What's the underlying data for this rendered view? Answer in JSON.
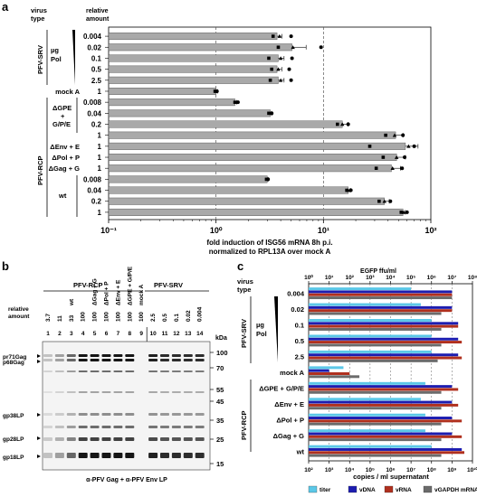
{
  "panel_a": {
    "label": "a",
    "header_virus": [
      "virus",
      "type"
    ],
    "header_amount": [
      "relative",
      "amount"
    ],
    "group_srv": "PFV-SRV",
    "group_rcp": "PFV-RCP",
    "ug_pol": [
      "µg",
      "Pol"
    ],
    "dgpe": [
      "ΔGPE",
      "+",
      "G/P/E"
    ],
    "wt": "wt",
    "rows": [
      {
        "amount": "0.004",
        "row_label": "",
        "value": 3.7,
        "err": 0.4,
        "pts": [
          3.4,
          3.9,
          5.0
        ]
      },
      {
        "amount": "0.02",
        "row_label": "",
        "value": 5.1,
        "err": 1.8,
        "pts": [
          3.8,
          5.2,
          9.5
        ]
      },
      {
        "amount": "0.1",
        "row_label": "",
        "value": 3.8,
        "err": 0.5,
        "pts": [
          3.1,
          4.0,
          5.1
        ]
      },
      {
        "amount": "0.5",
        "row_label": "",
        "value": 3.7,
        "err": 0.4,
        "pts": [
          3.3,
          3.8,
          4.8
        ]
      },
      {
        "amount": "2.5",
        "row_label": "",
        "value": 3.8,
        "err": 0.5,
        "pts": [
          3.2,
          4.0,
          5.0
        ]
      },
      {
        "amount": "1",
        "row_label": "mock A",
        "value": 1.0,
        "err": 0.03,
        "pts": [
          0.98,
          1.0,
          1.02
        ]
      },
      {
        "amount": "0.008",
        "row_label": "",
        "value": 1.5,
        "err": 0.05,
        "pts": [
          1.5,
          1.55,
          1.6
        ]
      },
      {
        "amount": "0.04",
        "row_label": "",
        "value": 3.2,
        "err": 0.1,
        "pts": [
          3.1,
          3.25,
          3.3
        ]
      },
      {
        "amount": "0.2",
        "row_label": "",
        "value": 15,
        "err": 2,
        "pts": [
          13.5,
          15,
          17
        ]
      },
      {
        "amount": "1",
        "row_label": "",
        "value": 47,
        "err": 8,
        "pts": [
          38,
          46,
          55
        ]
      },
      {
        "amount": "1",
        "row_label": "ΔEnv + E",
        "value": 58,
        "err": 18,
        "pts": [
          27,
          62,
          70
        ]
      },
      {
        "amount": "1",
        "row_label": "ΔPol + P",
        "value": 48,
        "err": 10,
        "pts": [
          36,
          48,
          57
        ]
      },
      {
        "amount": "1",
        "row_label": "ΔGag + G",
        "value": 43,
        "err": 9,
        "pts": [
          31,
          44,
          54
        ]
      },
      {
        "amount": "0.008",
        "row_label": "",
        "value": 3.0,
        "err": 0.05,
        "pts": [
          2.95,
          3.0,
          3.05
        ]
      },
      {
        "amount": "0.04",
        "row_label": "",
        "value": 17,
        "err": 0.8,
        "pts": [
          16.5,
          17,
          18
        ]
      },
      {
        "amount": "0.2",
        "row_label": "",
        "value": 37,
        "err": 4,
        "pts": [
          33,
          37,
          42
        ]
      },
      {
        "amount": "1",
        "row_label": "",
        "value": 55,
        "err": 3,
        "pts": [
          53,
          56,
          60
        ]
      }
    ],
    "x_ticks": [
      "10⁻¹",
      "10⁰",
      "10¹",
      "10²"
    ],
    "xlabel": [
      "fold induction of ISG56 mRNA 8h p.i.",
      "normalized to RPL13A over mock A"
    ]
  },
  "panel_b": {
    "label": "b",
    "group_rcp": "PFV-RCP",
    "group_srv": "PFV-SRV",
    "relative_amount": [
      "relative",
      "amount"
    ],
    "col_headers": [
      "",
      "",
      "wt",
      "",
      "ΔGag + G",
      "ΔPol + P",
      "ΔEnv + E",
      "ΔGPE + G/P/E",
      "mock A",
      "",
      "",
      "",
      "",
      ""
    ],
    "amounts": [
      "3.7",
      "11",
      "33",
      "100",
      "100",
      "100",
      "100",
      "100",
      "100",
      "2.5",
      "0.5",
      "0.1",
      "0.02",
      "0.004"
    ],
    "lanes": [
      "1",
      "2",
      "3",
      "4",
      "5",
      "6",
      "7",
      "8",
      "9",
      "10",
      "11",
      "12",
      "13",
      "14"
    ],
    "kda_label": "kDa",
    "kda": [
      "100",
      "70",
      "55",
      "45",
      "35",
      "25",
      "15"
    ],
    "bands": [
      "pr71Gag",
      "p68Gag",
      "gp38LP",
      "gp28LP",
      "gp18LP"
    ],
    "footer": "α-PFV Gag + α-PFV Env LP"
  },
  "panel_c": {
    "label": "c",
    "header_virus": [
      "virus",
      "type"
    ],
    "top_axis_label": "EGFP ffu/ml",
    "top_ticks": [
      "10⁰",
      "10¹",
      "10²",
      "10³",
      "10⁴",
      "10⁵",
      "10⁶",
      "10⁷",
      "10⁸"
    ],
    "bottom_ticks": [
      "10²",
      "10³",
      "10⁴",
      "10⁵",
      "10⁶",
      "10⁷",
      "10⁸",
      "10⁹",
      "10¹⁰"
    ],
    "xlabel": "copies / ml supernatant",
    "group_srv": "PFV-SRV",
    "group_rcp": "PFV-RCP",
    "ug_pol": [
      "µg",
      "Pol"
    ],
    "rows": [
      {
        "label": "0.004",
        "titer": 100000.0,
        "vdna": 1000000000.0,
        "vrna": 1000000000.0,
        "gapdh": 1000000000.0
      },
      {
        "label": "0.02",
        "titer": 300000.0,
        "vdna": 1000000000.0,
        "vrna": 1000000000.0,
        "gapdh": 300000000.0
      },
      {
        "label": "0.1",
        "titer": 1000000.0,
        "vdna": 2000000000.0,
        "vrna": 2000000000.0,
        "gapdh": 300000000.0
      },
      {
        "label": "0.5",
        "titer": 1000000.0,
        "vdna": 2000000000.0,
        "vrna": 3000000000.0,
        "gapdh": 300000000.0
      },
      {
        "label": "2.5",
        "titer": 1000000.0,
        "vdna": 2000000000.0,
        "vrna": 3000000000.0,
        "gapdh": 200000000.0
      },
      {
        "label": "mock A",
        "titer": 50,
        "vdna": 1000.0,
        "vrna": 10000.0,
        "gapdh": 30000.0
      },
      {
        "label": "ΔGPE + G/P/E",
        "titer": 500000.0,
        "vdna": 1000000000.0,
        "vrna": 2000000000.0,
        "gapdh": 300000000.0
      },
      {
        "label": "ΔEnv + E",
        "titer": 300000.0,
        "vdna": 1000000000.0,
        "vrna": 2000000000.0,
        "gapdh": 300000000.0
      },
      {
        "label": "ΔPol + P",
        "titer": 500000.0,
        "vdna": 1000000000.0,
        "vrna": 3000000000.0,
        "gapdh": 300000000.0
      },
      {
        "label": "ΔGag + G",
        "titer": 500000.0,
        "vdna": 1000000000.0,
        "vrna": 3000000000.0,
        "gapdh": 300000000.0
      },
      {
        "label": "wt",
        "titer": 1000000.0,
        "vdna": 3000000000.0,
        "vrna": 4000000000.0,
        "gapdh": 300000000.0
      }
    ],
    "legend": [
      {
        "name": "titer",
        "color": "#5bc8e8"
      },
      {
        "name": "vDNA",
        "color": "#1d1db0"
      },
      {
        "name": "vRNA",
        "color": "#b0301e"
      },
      {
        "name": "vGAPDH mRNA",
        "color": "#6b6b6b"
      }
    ]
  }
}
